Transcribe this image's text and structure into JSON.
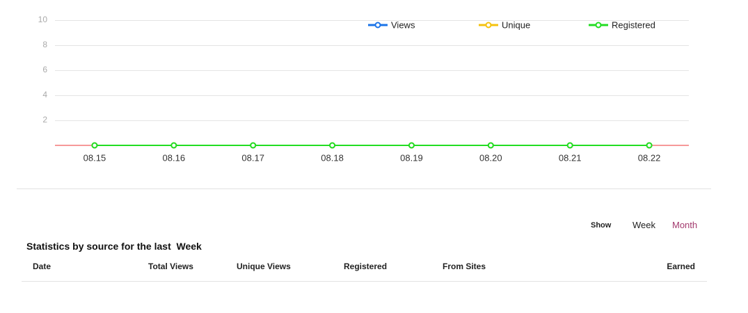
{
  "chart_data": {
    "type": "line",
    "categories": [
      "08.15",
      "08.16",
      "08.17",
      "08.18",
      "08.19",
      "08.20",
      "08.21",
      "08.22"
    ],
    "series": [
      {
        "name": "Views",
        "color": "#1a73e8",
        "values": [
          0,
          0,
          0,
          0,
          0,
          0,
          0,
          0
        ]
      },
      {
        "name": "Unique",
        "color": "#f4c20d",
        "values": [
          0,
          0,
          0,
          0,
          0,
          0,
          0,
          0
        ]
      },
      {
        "name": "Registered",
        "color": "#22dd22",
        "values": [
          0,
          0,
          0,
          0,
          0,
          0,
          0,
          0
        ]
      }
    ],
    "ylim": [
      0,
      10
    ],
    "yticks": [
      2,
      4,
      6,
      8,
      10
    ],
    "grid": true,
    "legend": "top"
  },
  "controls": {
    "label": "Show",
    "options": [
      "Week",
      "Month"
    ]
  },
  "stats": {
    "title": "Statistics by source for the last",
    "period": "Week",
    "columns": [
      "Date",
      "Total Views",
      "Unique Views",
      "Registered",
      "From Sites",
      "Earned"
    ]
  }
}
